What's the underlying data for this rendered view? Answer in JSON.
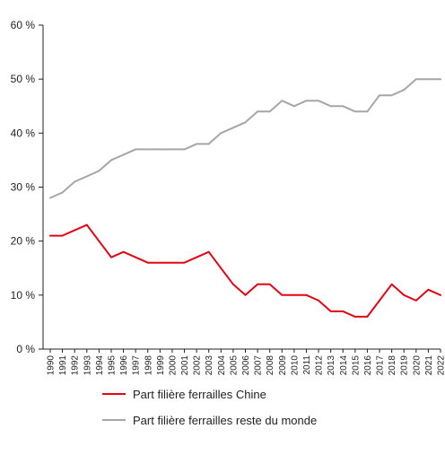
{
  "chart_data": {
    "type": "line",
    "title": "",
    "xlabel": "",
    "ylabel": "",
    "ylim": [
      0,
      60
    ],
    "y_ticks": [
      0,
      10,
      20,
      30,
      40,
      50,
      60
    ],
    "y_tick_labels": [
      "0 %",
      "10 %",
      "20 %",
      "30 %",
      "40 %",
      "50 %",
      "60 %"
    ],
    "grid": false,
    "legend_position": "bottom",
    "x": [
      1990,
      1991,
      1992,
      1993,
      1994,
      1995,
      1996,
      1997,
      1998,
      1999,
      2000,
      2001,
      2002,
      2003,
      2004,
      2005,
      2006,
      2007,
      2008,
      2009,
      2010,
      2011,
      2012,
      2013,
      2014,
      2015,
      2016,
      2017,
      2018,
      2019,
      2020,
      2021,
      2022
    ],
    "series": [
      {
        "name": "Part filière ferrailles Chine",
        "color": "#e30613",
        "values": [
          21,
          21,
          22,
          23,
          20,
          17,
          18,
          17,
          16,
          16,
          16,
          16,
          17,
          18,
          15,
          12,
          10,
          12,
          12,
          10,
          10,
          10,
          9,
          7,
          7,
          6,
          6,
          9,
          12,
          10,
          9,
          11,
          10
        ]
      },
      {
        "name": "Part filière ferrailles reste du monde",
        "color": "#a6a6a6",
        "values": [
          28,
          29,
          31,
          32,
          33,
          35,
          36,
          37,
          37,
          37,
          37,
          37,
          38,
          38,
          40,
          41,
          42,
          44,
          44,
          46,
          45,
          46,
          46,
          45,
          45,
          44,
          44,
          47,
          47,
          48,
          50,
          50,
          50
        ]
      }
    ]
  }
}
